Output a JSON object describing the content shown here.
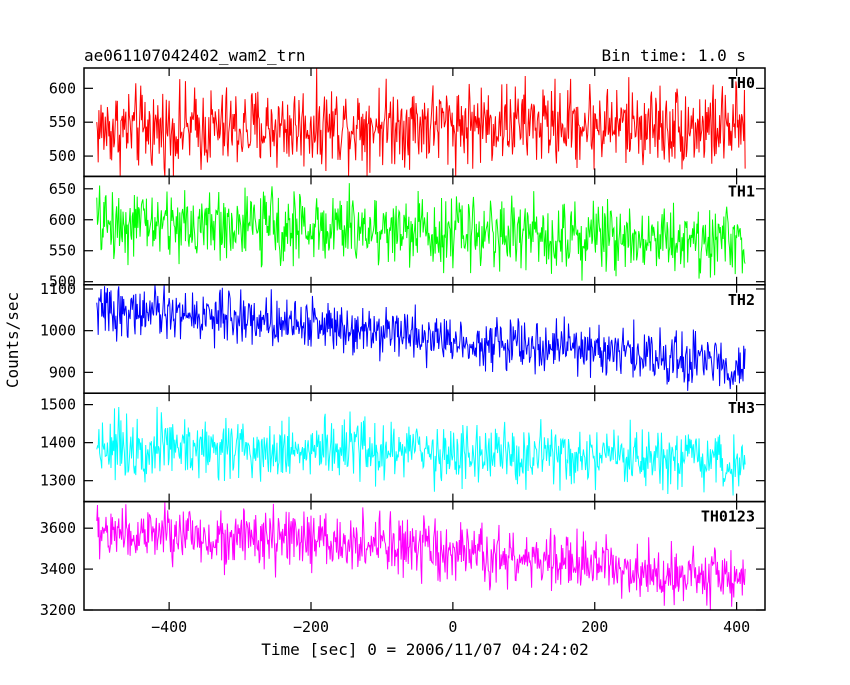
{
  "header": {
    "title": "ae061107042402_wam2_trn",
    "bin_time": "Bin time: 1.0 s"
  },
  "chart_data": {
    "type": "line",
    "title": "ae061107042402_wam2_trn",
    "subtitle": "Bin time: 1.0 s",
    "xlabel": "Time [sec] 0 = 2006/11/07 04:24:02",
    "ylabel": "Counts/sec",
    "xlim": [
      -520,
      440
    ],
    "x_ticks": [
      -400,
      -200,
      0,
      200,
      400
    ],
    "x_tick_labels": [
      "−400",
      "−200",
      "0",
      "200",
      "400"
    ],
    "x_data_range": [
      -502,
      412
    ],
    "bin_seconds": 1.0,
    "grid": false,
    "panels": [
      {
        "name": "TH0",
        "color": "#ff0000",
        "ylim": [
          470,
          630
        ],
        "y_ticks": [
          500,
          550,
          600
        ],
        "y_tick_labels": [
          "500",
          "550",
          "600"
        ],
        "trend_x": [
          -502,
          -300,
          -100,
          100,
          300,
          412
        ],
        "trend_y": [
          540,
          540,
          548,
          548,
          545,
          540
        ],
        "noise": 30,
        "y_min": 470,
        "y_max": 630
      },
      {
        "name": "TH1",
        "color": "#00ff00",
        "ylim": [
          495,
          670
        ],
        "y_ticks": [
          500,
          550,
          600,
          650
        ],
        "y_tick_labels": [
          "500",
          "550",
          "600",
          "650"
        ],
        "trend_x": [
          -502,
          -300,
          -100,
          100,
          300,
          412
        ],
        "trend_y": [
          595,
          590,
          585,
          578,
          572,
          565
        ],
        "noise": 28,
        "y_min": 495,
        "y_max": 670
      },
      {
        "name": "TH2",
        "color": "#0000ff",
        "ylim": [
          850,
          1110
        ],
        "y_ticks": [
          900,
          1000,
          1100
        ],
        "y_tick_labels": [
          "900",
          "1000",
          "1100"
        ],
        "trend_x": [
          -502,
          -300,
          -100,
          0,
          200,
          412
        ],
        "trend_y": [
          1050,
          1030,
          1005,
          975,
          955,
          915
        ],
        "noise": 30,
        "y_min": 850,
        "y_max": 1110
      },
      {
        "name": "TH3",
        "color": "#00ffff",
        "ylim": [
          1245,
          1530
        ],
        "y_ticks": [
          1300,
          1400,
          1500
        ],
        "y_tick_labels": [
          "1300",
          "1400",
          "1500"
        ],
        "trend_x": [
          -502,
          -300,
          -100,
          100,
          300,
          412
        ],
        "trend_y": [
          1395,
          1385,
          1380,
          1362,
          1350,
          1340
        ],
        "noise": 40,
        "y_min": 1245,
        "y_max": 1530
      },
      {
        "name": "TH0123",
        "color": "#ff00ff",
        "ylim": [
          3200,
          3730
        ],
        "y_ticks": [
          3200,
          3400,
          3600
        ],
        "y_tick_labels": [
          "3200",
          "3400",
          "3600"
        ],
        "trend_x": [
          -502,
          -300,
          -100,
          0,
          200,
          412
        ],
        "trend_y": [
          3580,
          3550,
          3520,
          3470,
          3420,
          3350
        ],
        "noise": 70,
        "y_min": 3200,
        "y_max": 3730
      }
    ]
  }
}
